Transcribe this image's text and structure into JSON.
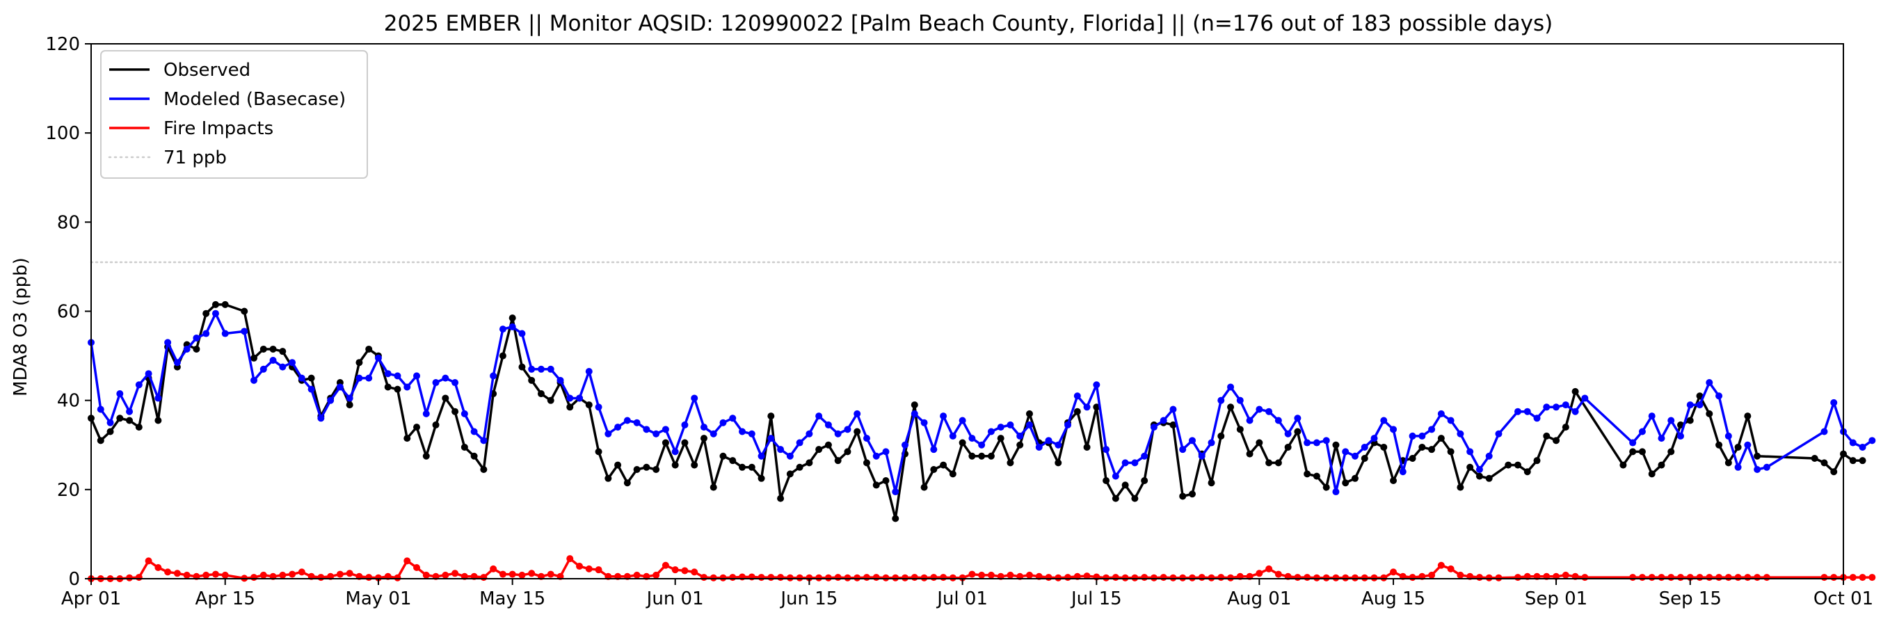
{
  "chart_data": {
    "type": "line",
    "title": "2025 EMBER || Monitor AQSID: 120990022 [Palm Beach County, Florida] || (n=176 out of 183 possible days)",
    "ylabel": "MDA8 O3 (ppb)",
    "xlabel": "",
    "x_start": "2025-04-01",
    "x_end": "2025-10-01",
    "ylim": [
      0,
      120
    ],
    "yticks": [
      0,
      20,
      40,
      60,
      80,
      100,
      120
    ],
    "xticks": [
      {
        "date": "2025-04-01",
        "label": "Apr 01"
      },
      {
        "date": "2025-04-15",
        "label": "Apr 15"
      },
      {
        "date": "2025-05-01",
        "label": "May 01"
      },
      {
        "date": "2025-05-15",
        "label": "May 15"
      },
      {
        "date": "2025-06-01",
        "label": "Jun 01"
      },
      {
        "date": "2025-06-15",
        "label": "Jun 15"
      },
      {
        "date": "2025-07-01",
        "label": "Jul 01"
      },
      {
        "date": "2025-07-15",
        "label": "Jul 15"
      },
      {
        "date": "2025-08-01",
        "label": "Aug 01"
      },
      {
        "date": "2025-08-15",
        "label": "Aug 15"
      },
      {
        "date": "2025-09-01",
        "label": "Sep 01"
      },
      {
        "date": "2025-09-15",
        "label": "Sep 15"
      },
      {
        "date": "2025-10-01",
        "label": "Oct 01"
      }
    ],
    "grid": false,
    "legend_position": "top-left",
    "reference_line": {
      "label": "71 ppb",
      "value": 71,
      "color": "#cccccc",
      "style": "dotted"
    },
    "series": [
      {
        "name": "Observed",
        "color": "#000000",
        "date_start": "2025-04-01",
        "values": [
          36,
          31,
          33,
          36,
          35.5,
          34,
          45,
          35.5,
          52,
          47.5,
          52.5,
          51.5,
          59.5,
          61.5,
          61.5,
          null,
          60,
          49.5,
          51.5,
          51.5,
          51,
          47.5,
          44.5,
          45,
          36.5,
          40.5,
          44,
          39,
          48.5,
          51.5,
          50,
          43,
          42.5,
          31.5,
          34,
          27.5,
          34.5,
          40.5,
          37.5,
          29.5,
          27.5,
          24.5,
          41.5,
          50,
          58.5,
          47.5,
          44.5,
          41.5,
          40,
          44,
          38.5,
          40.5,
          39,
          28.5,
          22.5,
          25.5,
          21.5,
          24.5,
          25,
          24.5,
          30.5,
          25.5,
          30.5,
          25.5,
          31.5,
          20.5,
          27.5,
          26.5,
          25,
          25,
          22.5,
          36.5,
          18,
          23.5,
          25,
          26,
          29,
          30,
          26.5,
          28.5,
          33,
          26,
          21,
          22,
          13.5,
          28,
          39,
          20.5,
          24.5,
          25.5,
          23.5,
          30.5,
          27.5,
          27.5,
          27.5,
          31.5,
          26,
          30,
          37,
          30.5,
          30.5,
          26,
          35,
          37.5,
          29.5,
          38.5,
          22,
          18,
          21,
          18,
          22,
          34.5,
          35,
          34.5,
          18.5,
          19,
          28,
          21.5,
          32,
          38.5,
          33.5,
          28,
          30.5,
          26,
          26,
          29.5,
          33,
          23.5,
          23,
          20.5,
          30,
          21.5,
          22.5,
          27,
          30.5,
          29.5,
          22,
          26.5,
          27,
          29.5,
          29,
          31.5,
          28.5,
          20.5,
          25,
          23,
          22.5,
          null,
          25.5,
          25.5,
          24,
          26.5,
          32,
          31,
          34,
          42,
          null,
          null,
          null,
          null,
          25.5,
          28.5,
          28.5,
          23.5,
          25.5,
          28.5,
          34.5,
          35.5,
          41,
          37,
          30,
          26,
          29.5,
          36.5,
          27.5,
          null,
          null,
          null,
          null,
          null,
          27,
          26,
          24,
          28,
          26.5,
          26.5
        ]
      },
      {
        "name": "Modeled (Basecase)",
        "color": "#0000ff",
        "date_start": "2025-04-01",
        "values": [
          53,
          38,
          35,
          41.5,
          37.5,
          43.5,
          46,
          40.5,
          53,
          48.5,
          51.5,
          54,
          55,
          59.5,
          55,
          null,
          55.5,
          44.5,
          47,
          49,
          47.5,
          48.5,
          45,
          42.5,
          36,
          40,
          43,
          40.5,
          45,
          45,
          49.5,
          46,
          45.5,
          43,
          45.5,
          37,
          44,
          45,
          44,
          37,
          33,
          31,
          45.5,
          56,
          56.5,
          55,
          47,
          47,
          47,
          44.5,
          40.5,
          40.5,
          46.5,
          38.5,
          32.5,
          34,
          35.5,
          35,
          33.5,
          32.5,
          33.5,
          28.5,
          34.5,
          40.5,
          34,
          32.5,
          35,
          36,
          33,
          32.5,
          27.5,
          31.5,
          29,
          27.5,
          30.5,
          32.5,
          36.5,
          34.5,
          32.5,
          33.5,
          37,
          31.5,
          27.5,
          28.5,
          19.5,
          30,
          37,
          35,
          29,
          36.5,
          32,
          35.5,
          31.5,
          30,
          33,
          34,
          34.5,
          32,
          34.5,
          29.5,
          31,
          30,
          34.5,
          41,
          38.5,
          43.5,
          29,
          23,
          26,
          26,
          27.5,
          34,
          35.5,
          38,
          29,
          31,
          27.5,
          30.5,
          40,
          43,
          40,
          35.5,
          38,
          37.5,
          35.5,
          32.5,
          36,
          30.5,
          30.5,
          31,
          19.5,
          28.5,
          27.5,
          29.5,
          31.5,
          35.5,
          33.5,
          24,
          32,
          32,
          33.5,
          37,
          35.5,
          32.5,
          28.5,
          24.5,
          27.5,
          32.5,
          null,
          37.5,
          37.5,
          36,
          38.5,
          38.5,
          39,
          37.5,
          40.5,
          null,
          null,
          null,
          null,
          30.5,
          33,
          36.5,
          31.5,
          35.5,
          32,
          39,
          39,
          44,
          41,
          32,
          25,
          30,
          24.5,
          25,
          null,
          null,
          null,
          null,
          null,
          33,
          39.5,
          33,
          30.5,
          29.5,
          31
        ]
      },
      {
        "name": "Fire Impacts",
        "color": "#ff0000",
        "date_start": "2025-04-01",
        "values": [
          0,
          0,
          0,
          0,
          0.2,
          0.3,
          4,
          2.5,
          1.5,
          1.2,
          0.8,
          0.5,
          0.8,
          1,
          0.8,
          null,
          0.1,
          0.3,
          0.8,
          0.5,
          0.8,
          1,
          1.5,
          0.5,
          0.3,
          0.5,
          1,
          1.2,
          0.5,
          0.3,
          0.2,
          0.5,
          0.2,
          4,
          2.5,
          0.8,
          0.5,
          0.8,
          1.2,
          0.5,
          0.5,
          0.3,
          2.2,
          1,
          1,
          0.8,
          1.2,
          0.5,
          1,
          0.5,
          4.5,
          2.8,
          2.2,
          2,
          0.5,
          0.5,
          0.5,
          0.8,
          0.5,
          0.8,
          3,
          2,
          1.8,
          1.5,
          0.3,
          0.2,
          0.2,
          0.3,
          0.4,
          0.4,
          0.3,
          0.3,
          0.3,
          0.2,
          0.2,
          0.2,
          0.2,
          0.2,
          0.3,
          0.2,
          0.2,
          0.3,
          0.3,
          0.2,
          0.2,
          0.2,
          0.3,
          0.2,
          0.3,
          0.3,
          0.2,
          0.2,
          1,
          0.8,
          0.8,
          0.5,
          0.8,
          0.5,
          0.8,
          0.5,
          0.3,
          0.2,
          0.3,
          0.5,
          0.6,
          0.4,
          0.2,
          0.3,
          0.2,
          0.2,
          0.3,
          0.2,
          0.3,
          0.2,
          0.2,
          0.2,
          0.3,
          0.2,
          0.3,
          0.2,
          0.5,
          0.5,
          1.2,
          2.2,
          1,
          0.5,
          0.3,
          0.3,
          0.2,
          0.2,
          0.2,
          0.2,
          0.2,
          0.2,
          0.2,
          0.2,
          1.5,
          0.5,
          0.3,
          0.5,
          0.8,
          3,
          2.2,
          0.8,
          0.5,
          0.3,
          0.2,
          0.2,
          null,
          0.3,
          0.5,
          0.5,
          0.5,
          0.5,
          0.8,
          0.5,
          0.3,
          null,
          null,
          null,
          null,
          0.3,
          0.3,
          0.3,
          0.3,
          0.3,
          0.3,
          0.3,
          0.3,
          0.3,
          0.3,
          0.3,
          0.3,
          0.3,
          0.3,
          0.3,
          null,
          null,
          null,
          null,
          null,
          0.3,
          0.3,
          0.3,
          0.3,
          0.3,
          0.3
        ]
      }
    ]
  }
}
